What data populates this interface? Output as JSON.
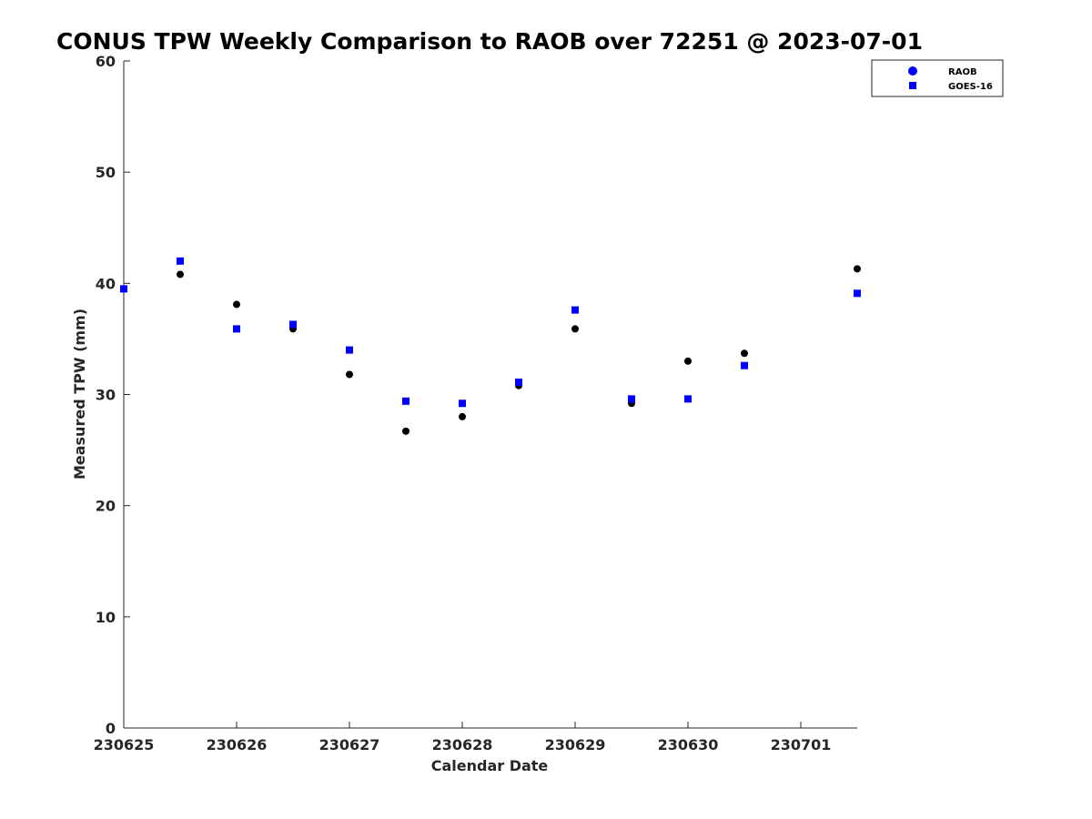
{
  "chart_data": {
    "type": "scatter",
    "title": "CONUS TPW Weekly Comparison to RAOB over 72251 @ 2023-07-01",
    "xlabel": "Calendar Date",
    "ylabel": "Measured TPW (mm)",
    "xlim": [
      0,
      6.5
    ],
    "ylim": [
      0,
      60
    ],
    "x_ticks": [
      0,
      1,
      2,
      3,
      4,
      5,
      6
    ],
    "x_tick_labels": [
      "230625",
      "230626",
      "230627",
      "230628",
      "230629",
      "230630",
      "230701"
    ],
    "y_ticks": [
      0,
      10,
      20,
      30,
      40,
      50,
      60
    ],
    "y_tick_labels": [
      "0",
      "10",
      "20",
      "30",
      "40",
      "50",
      "60"
    ],
    "legend_position": "top-right",
    "series": [
      {
        "name": "RAOB",
        "marker": "circle",
        "color": "#000000",
        "legend_color": "#0000ff",
        "x": [
          0,
          0.5,
          1,
          1.5,
          2,
          2.5,
          3,
          3.5,
          4,
          4.5,
          5,
          5.5,
          6.5
        ],
        "values": [
          39.5,
          40.8,
          38.1,
          35.9,
          31.8,
          26.7,
          28.0,
          30.8,
          35.9,
          29.2,
          33.0,
          33.7,
          41.3
        ]
      },
      {
        "name": "GOES-16",
        "marker": "square",
        "color": "#0000ff",
        "legend_color": "#0000ff",
        "x": [
          0,
          0.5,
          1,
          1.5,
          2,
          2.5,
          3,
          3.5,
          4,
          4.5,
          5,
          5.5,
          6.5
        ],
        "values": [
          39.5,
          42.0,
          35.9,
          36.3,
          34.0,
          29.4,
          29.2,
          31.1,
          37.6,
          29.6,
          29.6,
          32.6,
          39.1
        ]
      }
    ]
  }
}
